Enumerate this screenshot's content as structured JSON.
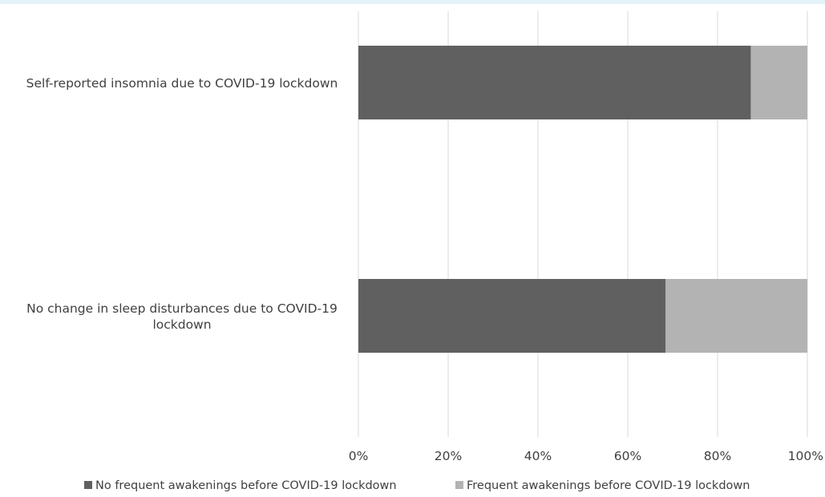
{
  "chart_data": {
    "type": "bar",
    "orientation": "horizontal",
    "stacked": true,
    "categories": [
      "Self-reported insomnia due to COVID-19 lockdown",
      "No change in sleep disturbances due to COVID-19 lockdown"
    ],
    "series": [
      {
        "name": "No frequent awakenings before COVID-19 lockdown",
        "values": [
          87.4,
          68.4
        ],
        "color": "#606060"
      },
      {
        "name": "Frequent awakenings before COVID-19 lockdown",
        "values": [
          12.6,
          31.6
        ],
        "color": "#b3b3b3"
      }
    ],
    "xlim": [
      0,
      100
    ],
    "x_ticks": [
      "0%",
      "20%",
      "40%",
      "60%",
      "80%",
      "100%"
    ],
    "grid": "vertical",
    "legend_position": "bottom",
    "title": "",
    "xlabel": "",
    "ylabel": ""
  }
}
